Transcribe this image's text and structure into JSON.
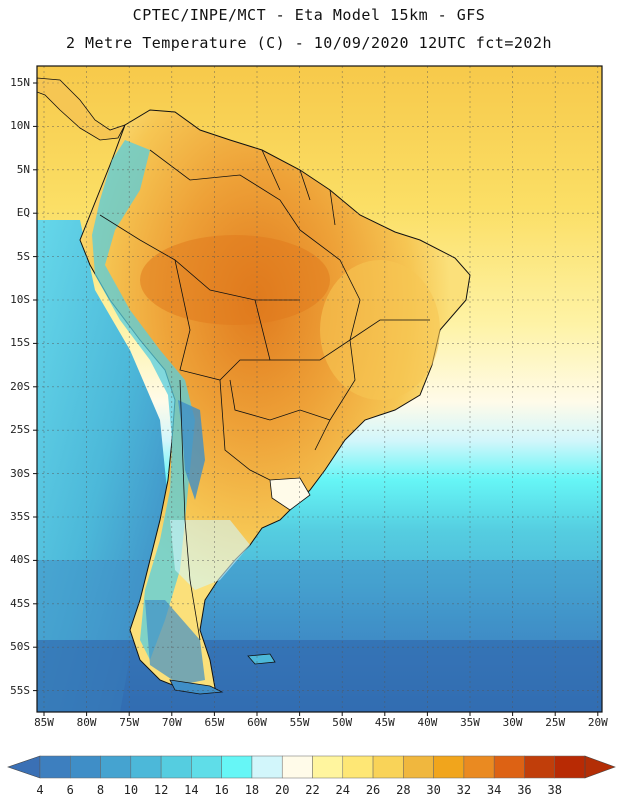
{
  "header": {
    "line1": "CPTEC/INPE/MCT -  Eta Model 15km - GFS",
    "line2": "2 Metre Temperature (C) - 10/09/2020 12UTC fct=202h"
  },
  "axes": {
    "lat_labels": [
      "15N",
      "10N",
      "5N",
      "EQ",
      "5S",
      "10S",
      "15S",
      "20S",
      "25S",
      "30S",
      "35S",
      "40S",
      "45S",
      "50S",
      "55S"
    ],
    "lon_labels": [
      "85W",
      "80W",
      "75W",
      "70W",
      "65W",
      "60W",
      "55W",
      "50W",
      "45W",
      "40W",
      "35W",
      "30W",
      "25W",
      "20W"
    ]
  },
  "colorbar": {
    "labels": [
      "4",
      "6",
      "8",
      "10",
      "12",
      "14",
      "16",
      "18",
      "20",
      "22",
      "24",
      "26",
      "28",
      "30",
      "32",
      "34",
      "36",
      "38"
    ],
    "colors": [
      "#3d7fbf",
      "#3f8ec7",
      "#45a3d0",
      "#4cb8d9",
      "#55cde0",
      "#5fdde8",
      "#66f6f6",
      "#d2f6fb",
      "#fffbe9",
      "#fff59e",
      "#fee775",
      "#f9d358",
      "#f0b73e",
      "#f1a51c",
      "#ea8a21",
      "#dd6214",
      "#c13e0a",
      "#b82a04"
    ],
    "under_color": "#3a70b5",
    "over_color": "#b32e06"
  }
}
